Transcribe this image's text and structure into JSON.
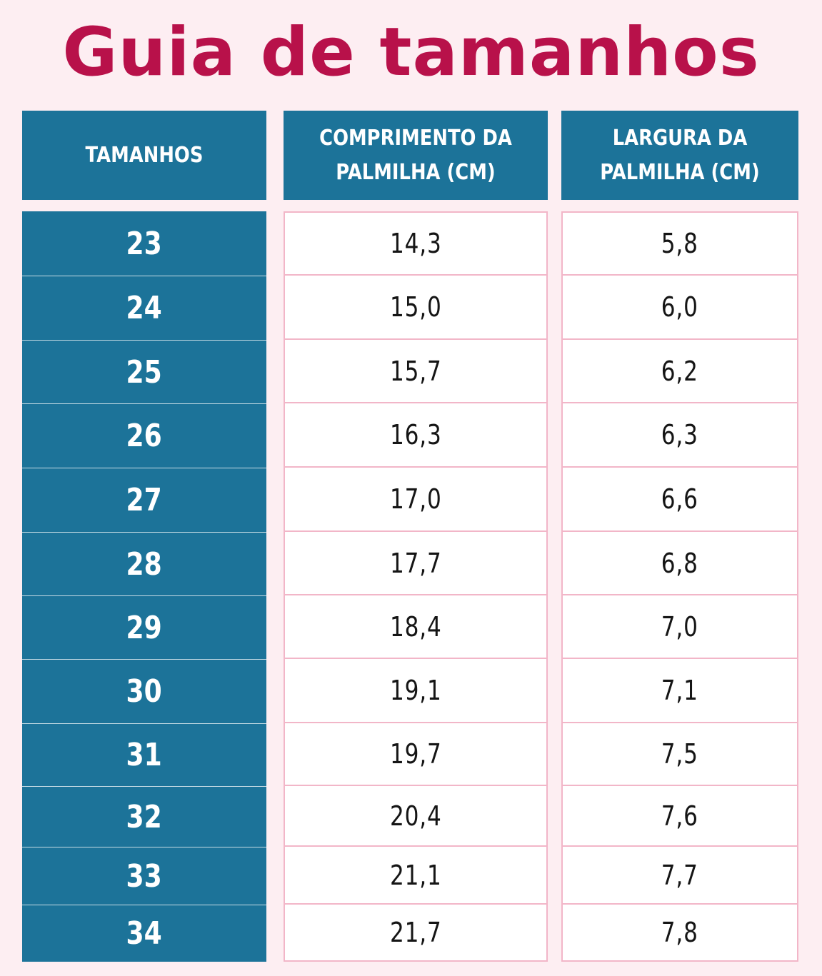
{
  "title": "Guia de tamanhos",
  "colors": {
    "title": "#b8114a",
    "header_bg": "#1c7399",
    "size_cell_bg": "#1c7399",
    "value_cell_bg": "#ffffff",
    "value_border": "#f2b6c8",
    "page_bg": "#fdeef2"
  },
  "table": {
    "headers": {
      "size": "TAMANHOS",
      "length": [
        "COMPRIMENTO DA",
        "PALMILHA (CM)"
      ],
      "width": [
        "LARGURA DA",
        "PALMILHA (CM)"
      ]
    },
    "rows": [
      {
        "size": "23",
        "length": "14,3",
        "width": "5,8"
      },
      {
        "size": "24",
        "length": "15,0",
        "width": "6,0"
      },
      {
        "size": "25",
        "length": "15,7",
        "width": "6,2"
      },
      {
        "size": "26",
        "length": "16,3",
        "width": "6,3"
      },
      {
        "size": "27",
        "length": "17,0",
        "width": "6,6"
      },
      {
        "size": "28",
        "length": "17,7",
        "width": "6,8"
      },
      {
        "size": "29",
        "length": "18,4",
        "width": "7,0"
      },
      {
        "size": "30",
        "length": "19,1",
        "width": "7,1"
      },
      {
        "size": "31",
        "length": "19,7",
        "width": "7,5"
      },
      {
        "size": "32",
        "length": "20,4",
        "width": "7,6"
      },
      {
        "size": "33",
        "length": "21,1",
        "width": "7,7"
      },
      {
        "size": "34",
        "length": "21,7",
        "width": "7,8"
      }
    ]
  }
}
